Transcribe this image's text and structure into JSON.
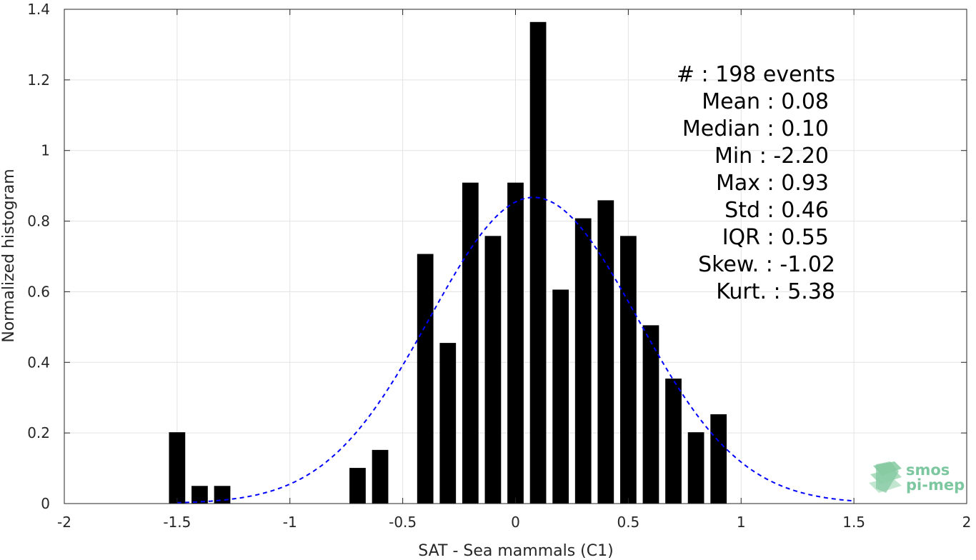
{
  "chart_data": {
    "type": "bar",
    "xlabel": "SAT - Sea mammals (C1)",
    "ylabel": "Normalized histogram",
    "xlim": [
      -2,
      2
    ],
    "ylim": [
      0,
      1.4
    ],
    "xticks": [
      -2,
      -1.5,
      -1,
      -0.5,
      0,
      0.5,
      1,
      1.5,
      2
    ],
    "xtick_labels": [
      "-2",
      "-1.5",
      "-1",
      "-0.5",
      "0",
      "0.5",
      "1",
      "1.5",
      "2"
    ],
    "yticks": [
      0,
      0.2,
      0.4,
      0.6,
      0.8,
      1,
      1.2,
      1.4
    ],
    "ytick_labels": [
      "0",
      "0.2",
      "0.4",
      "0.6",
      "0.8",
      "1",
      "1.2",
      "1.4"
    ],
    "grid": true,
    "bin_width": 0.1,
    "bar_color": "#000000",
    "bins": [
      {
        "x": -1.5,
        "value": 0.202
      },
      {
        "x": -1.4,
        "value": 0.05
      },
      {
        "x": -1.3,
        "value": 0.05
      },
      {
        "x": -0.7,
        "value": 0.101
      },
      {
        "x": -0.6,
        "value": 0.152
      },
      {
        "x": -0.4,
        "value": 0.707
      },
      {
        "x": -0.3,
        "value": 0.455
      },
      {
        "x": -0.2,
        "value": 0.909
      },
      {
        "x": -0.1,
        "value": 0.758
      },
      {
        "x": 0.0,
        "value": 0.909
      },
      {
        "x": 0.1,
        "value": 1.364
      },
      {
        "x": 0.2,
        "value": 0.606
      },
      {
        "x": 0.3,
        "value": 0.808
      },
      {
        "x": 0.4,
        "value": 0.859
      },
      {
        "x": 0.5,
        "value": 0.758
      },
      {
        "x": 0.6,
        "value": 0.505
      },
      {
        "x": 0.7,
        "value": 0.354
      },
      {
        "x": 0.8,
        "value": 0.202
      },
      {
        "x": 0.9,
        "value": 0.253
      }
    ],
    "fit": {
      "kind": "gaussian",
      "mean": 0.08,
      "std": 0.46,
      "x_range": [
        -1.5,
        1.5
      ],
      "color": "#0000ff",
      "style": "dashed"
    },
    "annotations": [
      "#  : 198 events",
      "Mean : 0.08",
      "Median : 0.10",
      "Min : -2.20",
      "Max : 0.93",
      "Std : 0.46",
      "IQR : 0.55",
      "Skew. : -1.02",
      "Kurt. : 5.38"
    ]
  },
  "logo": {
    "line1": "smos",
    "line2": "pi-mep",
    "color": "#7cc7a0"
  }
}
